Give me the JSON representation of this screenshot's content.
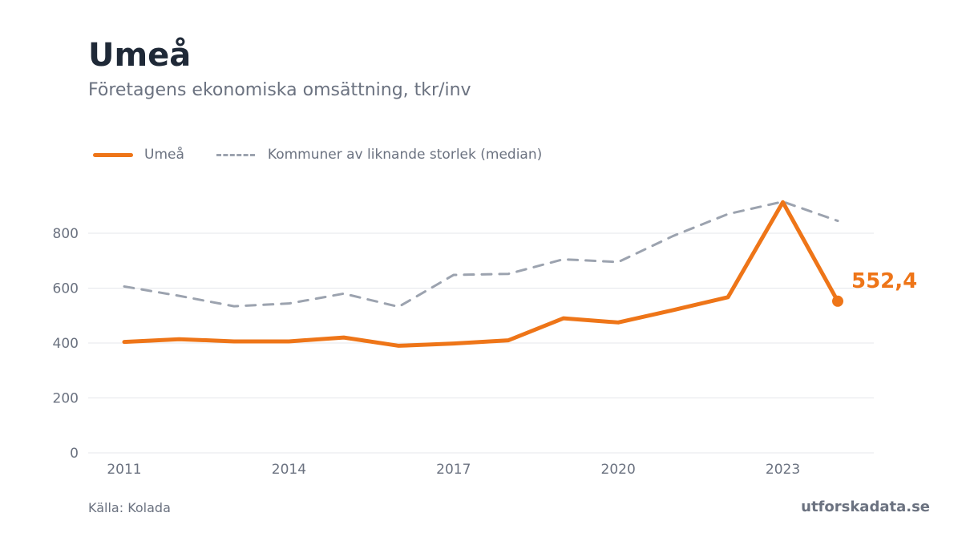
{
  "header": {
    "title": "Umeå",
    "subtitle": "Företagens ekonomiska omsättning, tkr/inv"
  },
  "footer": {
    "source": "Källa: Kolada",
    "brand": "utforskadata.se"
  },
  "colors": {
    "primary": "#ee7518",
    "median": "#9ca3af",
    "grid": "#e5e7eb",
    "text": "#6b7280"
  },
  "chart_data": {
    "type": "line",
    "title": "Umeå",
    "subtitle": "Företagens ekonomiska omsättning, tkr/inv",
    "x": [
      2011,
      2012,
      2013,
      2014,
      2015,
      2016,
      2017,
      2018,
      2019,
      2020,
      2021,
      2022,
      2023,
      2024
    ],
    "x_ticks": [
      "2011",
      "2014",
      "2017",
      "2020",
      "2023"
    ],
    "y_ticks": [
      "0",
      "200",
      "400",
      "600",
      "800"
    ],
    "ylim": [
      0,
      1000
    ],
    "grid": true,
    "legend_position": "top-left",
    "series": [
      {
        "name": "Umeå",
        "style": "solid",
        "values": [
          404,
          414,
          406,
          406,
          420,
          390,
          398,
          410,
          490,
          475,
          520,
          567,
          913,
          552.4
        ]
      },
      {
        "name": "Kommuner av liknande storlek (median)",
        "style": "dashed",
        "values": [
          606,
          572,
          534,
          544,
          580,
          532,
          648,
          652,
          705,
          695,
          790,
          870,
          915,
          845
        ]
      }
    ],
    "end_label": "552,4"
  }
}
